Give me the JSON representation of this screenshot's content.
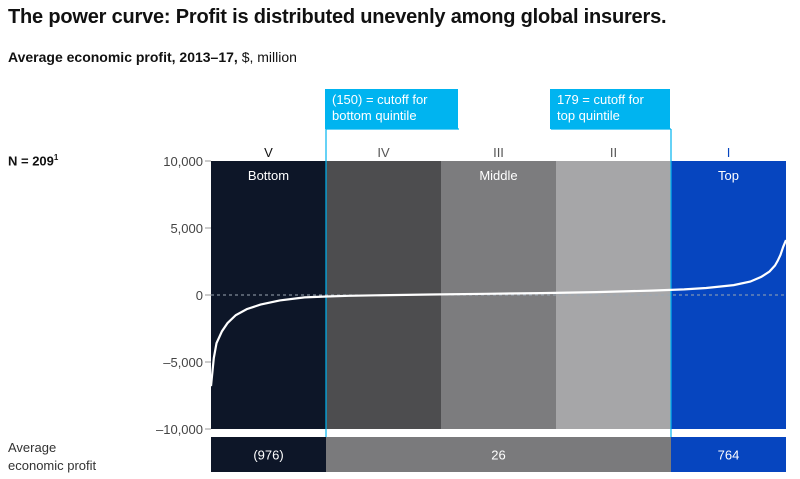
{
  "header": {
    "title": "The power curve: Profit is distributed unevenly among global insurers.",
    "subtitle_bold": "Average economic profit, 2013–17,",
    "subtitle_rest": " $, million"
  },
  "sample_label": "N = 209",
  "sample_footnote": "1",
  "callouts": {
    "bottom": [
      "(150) = cutoff for",
      "bottom quintile"
    ],
    "top": [
      "179 = cutoff for",
      "top quintile"
    ]
  },
  "average_label": [
    "Average",
    "economic profit"
  ],
  "colors": {
    "q5": "#0d1628",
    "q4": "#4d4d4f",
    "q3": "#7c7c7e",
    "q2": "#a6a6a8",
    "q1": "#0645bf",
    "avg_mid": "#7a7a7c",
    "accent": "#00b4f0",
    "curve": "#ffffff"
  },
  "chart_data": {
    "type": "line",
    "title": "The power curve: Profit is distributed unevenly among global insurers.",
    "ylabel": "Average economic profit, 2013–17, $, million",
    "ylim": [
      -10000,
      10000
    ],
    "yticks": [
      10000,
      5000,
      0,
      -5000,
      -10000
    ],
    "ytick_labels": [
      "10,000",
      "5,000",
      "0",
      "–5,000",
      "–10,000"
    ],
    "n_companies": 209,
    "quintiles": [
      {
        "roman": "V",
        "name": "Bottom",
        "avg": "(976)"
      },
      {
        "roman": "IV",
        "name": "",
        "avg": ""
      },
      {
        "roman": "III",
        "name": "Middle",
        "avg": "26"
      },
      {
        "roman": "II",
        "name": "",
        "avg": ""
      },
      {
        "roman": "I",
        "name": "Top",
        "avg": "764"
      }
    ],
    "series": [
      {
        "x": [
          0,
          1,
          2,
          4,
          6,
          9,
          13,
          18,
          25,
          34,
          42,
          50,
          60,
          80,
          100,
          120,
          140,
          160,
          172,
          180,
          190,
          196,
          200,
          203,
          205,
          206,
          207,
          208,
          209
        ],
        "y": [
          -6800,
          -4700,
          -3600,
          -2700,
          -2100,
          -1500,
          -1050,
          -720,
          -400,
          -180,
          -110,
          -60,
          -20,
          40,
          90,
          140,
          220,
          330,
          420,
          520,
          740,
          1000,
          1350,
          1750,
          2200,
          2550,
          3000,
          3600,
          4100
        ]
      }
    ]
  }
}
